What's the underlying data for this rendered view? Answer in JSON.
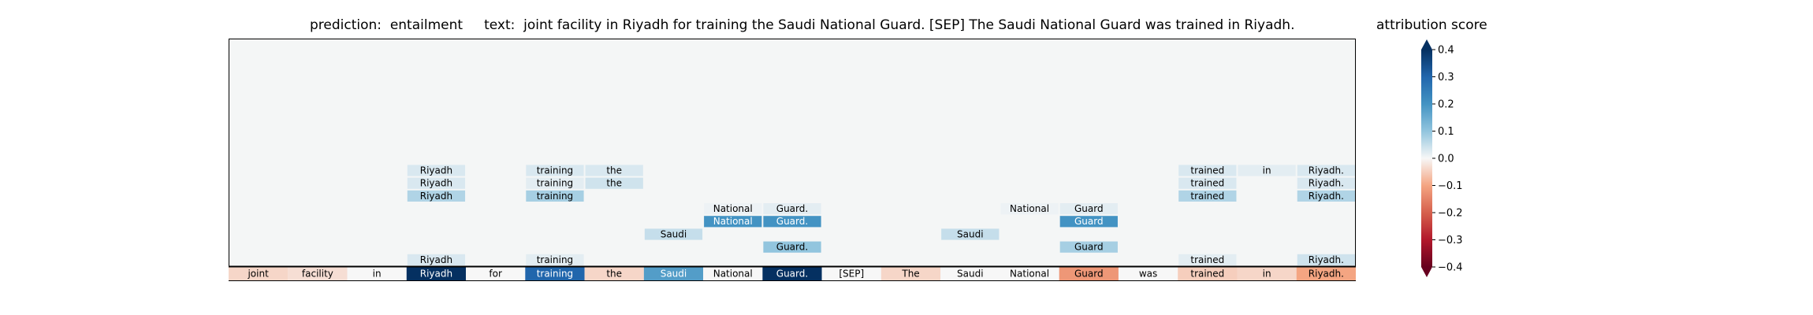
{
  "figure": {
    "title": "prediction:  entailment     text:  joint facility in Riyadh for training the Saudi National Guard. [SEP] The Saudi National Guard was trained in Riyadh.",
    "colorbar_label": "attribution score"
  },
  "chart_data": {
    "type": "heatmap",
    "tokens": [
      "joint",
      "facility",
      "in",
      "Riyadh",
      "for",
      "training",
      "the",
      "Saudi",
      "National",
      "Guard.",
      "[SEP]",
      "The",
      "Saudi",
      "National",
      "Guard",
      "was",
      "trained",
      "in",
      "Riyadh."
    ],
    "input_row_scores": [
      -0.04,
      -0.03,
      0.0,
      0.4,
      0.0,
      0.3,
      -0.04,
      0.18,
      0.0,
      0.4,
      0.0,
      -0.04,
      0.0,
      0.0,
      -0.12,
      0.0,
      -0.05,
      -0.04,
      -0.1
    ],
    "attention_cells": [
      {
        "row": 1,
        "col": 3,
        "score": 0.03
      },
      {
        "row": 1,
        "col": 5,
        "score": 0.02
      },
      {
        "row": 1,
        "col": 16,
        "score": 0.02
      },
      {
        "row": 1,
        "col": 18,
        "score": 0.04
      },
      {
        "row": 2,
        "col": 9,
        "score": 0.1
      },
      {
        "row": 2,
        "col": 14,
        "score": 0.08
      },
      {
        "row": 3,
        "col": 7,
        "score": 0.05
      },
      {
        "row": 3,
        "col": 12,
        "score": 0.05
      },
      {
        "row": 4,
        "col": 8,
        "score": 0.2
      },
      {
        "row": 4,
        "col": 9,
        "score": 0.2
      },
      {
        "row": 4,
        "col": 14,
        "score": 0.2
      },
      {
        "row": 5,
        "col": 8,
        "score": 0.01
      },
      {
        "row": 5,
        "col": 9,
        "score": 0.02
      },
      {
        "row": 5,
        "col": 13,
        "score": 0.01
      },
      {
        "row": 5,
        "col": 14,
        "score": 0.02
      },
      {
        "row": 6,
        "col": 3,
        "score": 0.07
      },
      {
        "row": 6,
        "col": 5,
        "score": 0.08
      },
      {
        "row": 6,
        "col": 16,
        "score": 0.07
      },
      {
        "row": 6,
        "col": 18,
        "score": 0.07
      },
      {
        "row": 7,
        "col": 3,
        "score": 0.03
      },
      {
        "row": 7,
        "col": 5,
        "score": 0.02
      },
      {
        "row": 7,
        "col": 6,
        "score": 0.04
      },
      {
        "row": 7,
        "col": 16,
        "score": 0.03
      },
      {
        "row": 7,
        "col": 18,
        "score": 0.03
      },
      {
        "row": 8,
        "col": 3,
        "score": 0.03
      },
      {
        "row": 8,
        "col": 5,
        "score": 0.03
      },
      {
        "row": 8,
        "col": 6,
        "score": 0.03
      },
      {
        "row": 8,
        "col": 16,
        "score": 0.03
      },
      {
        "row": 8,
        "col": 17,
        "score": 0.02
      },
      {
        "row": 8,
        "col": 18,
        "score": 0.03
      }
    ],
    "colorbar": {
      "range": [
        -0.4,
        0.4
      ],
      "ticks": [
        0.4,
        0.3,
        0.2,
        0.1,
        0.0,
        -0.1,
        -0.2,
        -0.3,
        -0.4
      ],
      "extend": "both"
    }
  },
  "colors": {
    "neg_strong": "#67001f",
    "neg_mid": "#d6604d",
    "neutral": "#f7f7f7",
    "pos_mid": "#4393c3",
    "pos_strong": "#053061"
  }
}
